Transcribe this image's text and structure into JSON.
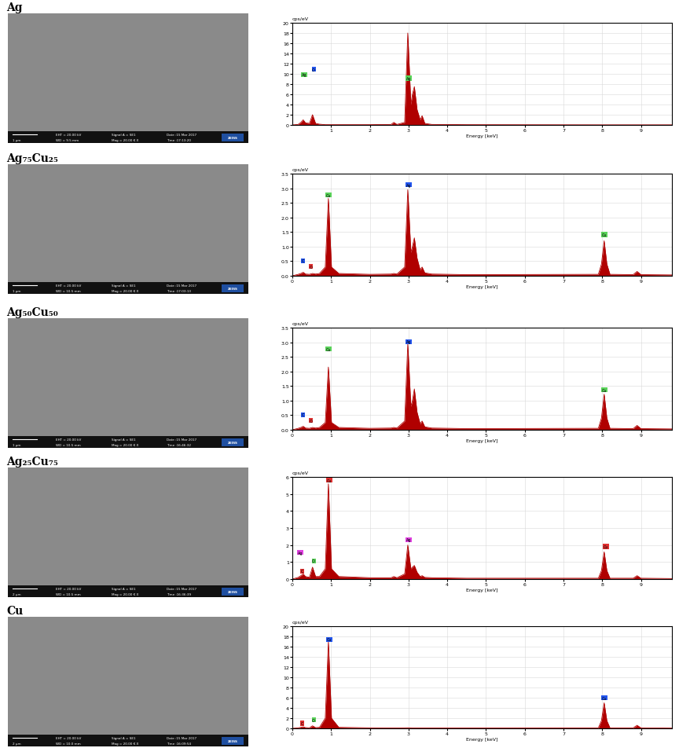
{
  "chart_data": [
    {
      "type": "area",
      "title": "Ag",
      "ylabel": "cps/eV",
      "xlabel": "Energy [keV]",
      "color": "#b00000",
      "grid": true,
      "x": [
        0,
        0.15,
        0.22,
        0.28,
        0.34,
        0.44,
        0.52,
        0.6,
        0.7,
        0.85,
        0.93,
        1.01,
        1.2,
        2.0,
        2.55,
        2.62,
        2.7,
        2.9,
        2.98,
        3.06,
        3.1,
        3.15,
        3.22,
        3.3,
        3.35,
        3.42,
        3.6,
        4.5,
        7.9,
        7.98,
        8.05,
        8.12,
        8.2,
        8.8,
        8.9,
        9.0,
        9.8
      ],
      "values": [
        0,
        0.1,
        0.5,
        1.0,
        0.4,
        0.3,
        2.0,
        0.3,
        0.15,
        0.05,
        0.05,
        0.05,
        0.05,
        0.05,
        0.1,
        0.5,
        0.1,
        0.5,
        18,
        4,
        6,
        7.5,
        3,
        1,
        1.8,
        0.3,
        0.1,
        0.05,
        0.02,
        0.02,
        0.02,
        0.02,
        0.02,
        0.02,
        0.02,
        0.02,
        0.02
      ],
      "xlim": [
        0,
        9.8
      ],
      "xticks": [
        1,
        2,
        3,
        4,
        5,
        6,
        7,
        8,
        9
      ],
      "ylim": [
        0,
        20
      ],
      "yticks": [
        0,
        2,
        4,
        6,
        8,
        10,
        12,
        14,
        16,
        18,
        20
      ],
      "annotations": [
        {
          "text": "Ag",
          "x": 0.3,
          "y": 9.5,
          "color": "#5ad35a"
        },
        {
          "text": "O",
          "x": 0.55,
          "y": 10.5,
          "color": "#2255ee"
        },
        {
          "text": "Ag",
          "x": 3.0,
          "y": 8.8,
          "color": "#5ad35a"
        }
      ],
      "image": {
        "scale_bar": "1 μm",
        "info": [
          "EHT = 20.00 kV",
          "WD = 9.5 mm",
          "Signal A = SE1",
          "Mag = 20.00 K X",
          "Date :15 Mar 2017",
          "Time :17:13:20"
        ],
        "logo": "ZEISS"
      }
    },
    {
      "type": "area",
      "title": "Ag₇₅Cu₂₅",
      "ylabel": "cps/eV",
      "xlabel": "Energy [keV]",
      "color": "#b00000",
      "grid": true,
      "x": [
        0,
        0.15,
        0.22,
        0.28,
        0.34,
        0.44,
        0.52,
        0.6,
        0.7,
        0.85,
        0.93,
        1.01,
        1.2,
        2.0,
        2.55,
        2.62,
        2.7,
        2.9,
        2.98,
        3.06,
        3.1,
        3.15,
        3.22,
        3.3,
        3.35,
        3.42,
        3.6,
        4.5,
        7.9,
        7.98,
        8.05,
        8.12,
        8.2,
        8.8,
        8.9,
        9.0,
        9.8
      ],
      "values": [
        0,
        0.05,
        0.08,
        0.12,
        0.06,
        0.05,
        0.08,
        0.06,
        0.08,
        0.3,
        2.65,
        0.3,
        0.08,
        0.05,
        0.06,
        0.08,
        0.06,
        0.3,
        2.95,
        0.8,
        1.0,
        1.3,
        0.6,
        0.2,
        0.3,
        0.1,
        0.06,
        0.04,
        0.05,
        0.4,
        1.2,
        0.4,
        0.05,
        0.04,
        0.15,
        0.04,
        0.03
      ],
      "xlim": [
        0,
        9.8
      ],
      "xticks": [
        0,
        1,
        2,
        3,
        4,
        5,
        6,
        7,
        8,
        9
      ],
      "ylim": [
        0,
        3.5
      ],
      "yticks": [
        0.0,
        0.5,
        1.0,
        1.5,
        2.0,
        2.5,
        3.0,
        3.5
      ],
      "annotations": [
        {
          "text": "C",
          "x": 0.28,
          "y": 0.45,
          "color": "#2255ee"
        },
        {
          "text": "O",
          "x": 0.48,
          "y": 0.25,
          "color": "#e03030"
        },
        {
          "text": "Cu",
          "x": 0.93,
          "y": 2.7,
          "color": "#5ad35a"
        },
        {
          "text": "Ag",
          "x": 3.0,
          "y": 3.05,
          "color": "#2255ee"
        },
        {
          "text": "Cu",
          "x": 8.05,
          "y": 1.35,
          "color": "#5ad35a"
        }
      ],
      "image": {
        "scale_bar": "1 μm",
        "info": [
          "EHT = 20.00 kV",
          "WD = 10.5 mm",
          "Signal A = SE1",
          "Mag = 20.00 K X",
          "Date :15 Mar 2017",
          "Time :17:03:13"
        ],
        "logo": "ZEISS"
      }
    },
    {
      "type": "area",
      "title": "Ag₅₀Cu₅₀",
      "ylabel": "cps/eV",
      "xlabel": "Energy [keV]",
      "color": "#b00000",
      "grid": true,
      "x": [
        0,
        0.15,
        0.22,
        0.28,
        0.34,
        0.44,
        0.52,
        0.6,
        0.7,
        0.85,
        0.93,
        1.01,
        1.2,
        2.0,
        2.55,
        2.62,
        2.7,
        2.9,
        2.98,
        3.06,
        3.1,
        3.15,
        3.22,
        3.3,
        3.35,
        3.42,
        3.6,
        4.5,
        7.9,
        7.98,
        8.05,
        8.12,
        8.2,
        8.8,
        8.9,
        9.0,
        9.8
      ],
      "values": [
        0,
        0.05,
        0.08,
        0.12,
        0.06,
        0.05,
        0.08,
        0.06,
        0.08,
        0.25,
        2.15,
        0.25,
        0.08,
        0.05,
        0.06,
        0.08,
        0.06,
        0.3,
        2.95,
        0.8,
        1.0,
        1.4,
        0.6,
        0.2,
        0.3,
        0.1,
        0.06,
        0.04,
        0.05,
        0.4,
        1.22,
        0.4,
        0.05,
        0.04,
        0.15,
        0.04,
        0.03
      ],
      "xlim": [
        0,
        9.8
      ],
      "xticks": [
        0,
        1,
        2,
        3,
        4,
        5,
        6,
        7,
        8,
        9
      ],
      "ylim": [
        0,
        3.5
      ],
      "yticks": [
        0.0,
        0.5,
        1.0,
        1.5,
        2.0,
        2.5,
        3.0,
        3.5
      ],
      "annotations": [
        {
          "text": "C",
          "x": 0.28,
          "y": 0.45,
          "color": "#2255ee"
        },
        {
          "text": "O",
          "x": 0.48,
          "y": 0.25,
          "color": "#e03030"
        },
        {
          "text": "Cu",
          "x": 0.93,
          "y": 2.7,
          "color": "#5ad35a"
        },
        {
          "text": "Ag",
          "x": 3.0,
          "y": 2.95,
          "color": "#2255ee"
        },
        {
          "text": "Cu",
          "x": 8.05,
          "y": 1.3,
          "color": "#5ad35a"
        }
      ],
      "image": {
        "scale_bar": "1 μm",
        "info": [
          "EHT = 20.00 kV",
          "WD = 10.5 mm",
          "Signal A = SE1",
          "Mag = 20.00 K X",
          "Date :15 Mar 2017",
          "Time :16:46:32"
        ],
        "logo": "ZEISS"
      }
    },
    {
      "type": "area",
      "title": "Ag₂₅Cu₇₅",
      "ylabel": "cps/eV",
      "xlabel": "Energy [keV]",
      "color": "#b00000",
      "grid": true,
      "x": [
        0,
        0.15,
        0.22,
        0.28,
        0.34,
        0.44,
        0.52,
        0.6,
        0.7,
        0.85,
        0.93,
        1.01,
        1.2,
        2.0,
        2.55,
        2.62,
        2.7,
        2.9,
        2.98,
        3.06,
        3.1,
        3.15,
        3.22,
        3.3,
        3.35,
        3.42,
        3.6,
        4.5,
        7.9,
        7.98,
        8.05,
        8.12,
        8.2,
        8.8,
        8.9,
        9.0,
        9.8
      ],
      "values": [
        0,
        0.1,
        0.2,
        0.3,
        0.15,
        0.1,
        0.7,
        0.15,
        0.15,
        0.6,
        5.6,
        0.6,
        0.15,
        0.08,
        0.08,
        0.15,
        0.08,
        0.3,
        2.0,
        0.6,
        0.7,
        0.8,
        0.4,
        0.15,
        0.2,
        0.1,
        0.08,
        0.05,
        0.05,
        0.5,
        1.6,
        0.5,
        0.05,
        0.05,
        0.2,
        0.05,
        0.03
      ],
      "xlim": [
        0,
        9.8
      ],
      "xticks": [
        0,
        1,
        2,
        3,
        4,
        5,
        6,
        7,
        8,
        9
      ],
      "ylim": [
        0,
        6
      ],
      "yticks": [
        0,
        1,
        2,
        3,
        4,
        5,
        6
      ],
      "annotations": [
        {
          "text": "Ag",
          "x": 0.2,
          "y": 1.45,
          "color": "#e040e0"
        },
        {
          "text": "C",
          "x": 0.25,
          "y": 0.35,
          "color": "#e03030"
        },
        {
          "text": "O",
          "x": 0.55,
          "y": 0.95,
          "color": "#5ad35a"
        },
        {
          "text": "Cu",
          "x": 0.95,
          "y": 5.7,
          "color": "#e03030"
        },
        {
          "text": "Ag",
          "x": 3.0,
          "y": 2.2,
          "color": "#e040e0"
        },
        {
          "text": "Cu",
          "x": 8.1,
          "y": 1.8,
          "color": "#e03030"
        }
      ],
      "image": {
        "scale_bar": "2 μm",
        "info": [
          "EHT = 20.00 kV",
          "WD = 10.5 mm",
          "Signal A = SE1",
          "Mag = 20.00 K X",
          "Date :15 Mar 2017",
          "Time :16:36:39"
        ],
        "logo": "ZEISS"
      }
    },
    {
      "type": "area",
      "title": "Cu",
      "ylabel": "cps/eV",
      "xlabel": "Energy [keV]",
      "color": "#b00000",
      "grid": true,
      "x": [
        0,
        0.15,
        0.22,
        0.28,
        0.34,
        0.44,
        0.52,
        0.6,
        0.7,
        0.85,
        0.93,
        1.01,
        1.2,
        2.0,
        2.55,
        2.62,
        2.7,
        2.9,
        2.98,
        3.06,
        3.1,
        3.15,
        3.22,
        3.3,
        3.35,
        3.42,
        3.6,
        4.5,
        7.9,
        7.98,
        8.05,
        8.12,
        8.2,
        8.8,
        8.9,
        9.0,
        9.8
      ],
      "values": [
        0,
        0.1,
        0.2,
        0.3,
        0.15,
        0.1,
        0.5,
        0.15,
        0.2,
        2,
        17,
        2,
        0.2,
        0.1,
        0.08,
        0.08,
        0.08,
        0.1,
        0.12,
        0.1,
        0.08,
        0.08,
        0.08,
        0.08,
        0.08,
        0.08,
        0.08,
        0.08,
        0.1,
        1.5,
        5,
        1.5,
        0.1,
        0.1,
        0.6,
        0.1,
        0.05
      ],
      "xlim": [
        0,
        9.8
      ],
      "xticks": [
        0,
        1,
        2,
        3,
        4,
        5,
        6,
        7,
        8,
        9
      ],
      "ylim": [
        0,
        20
      ],
      "yticks": [
        0,
        2,
        4,
        6,
        8,
        10,
        12,
        14,
        16,
        18,
        20
      ],
      "annotations": [
        {
          "text": "C",
          "x": 0.25,
          "y": 0.6,
          "color": "#e03030"
        },
        {
          "text": "O",
          "x": 0.55,
          "y": 1.3,
          "color": "#5ad35a"
        },
        {
          "text": "Cu",
          "x": 0.95,
          "y": 17,
          "color": "#2255ee"
        },
        {
          "text": "Cu",
          "x": 8.05,
          "y": 5.6,
          "color": "#2255ee"
        }
      ],
      "image": {
        "scale_bar": "2 μm",
        "info": [
          "EHT = 20.00 kV",
          "WD = 10.0 mm",
          "Signal A = SE1",
          "Mag = 20.00 K X",
          "Date :15 Mar 2017",
          "Time :16:09:54"
        ],
        "logo": "ZEISS"
      }
    }
  ]
}
